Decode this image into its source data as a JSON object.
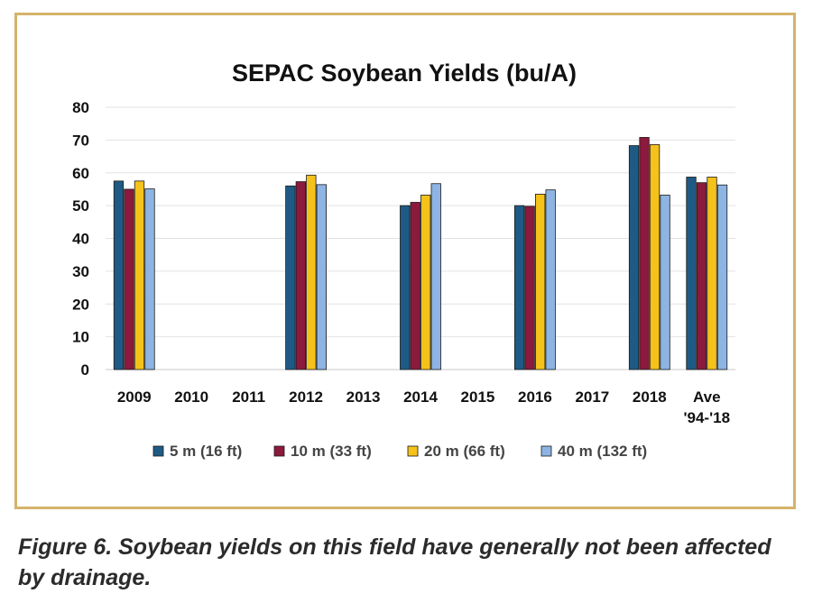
{
  "chart_data": {
    "type": "bar",
    "title": "SEPAC Soybean Yields (bu/A)",
    "categories": [
      [
        "2009"
      ],
      [
        "2010"
      ],
      [
        "2011"
      ],
      [
        "2012"
      ],
      [
        "2013"
      ],
      [
        "2014"
      ],
      [
        "2015"
      ],
      [
        "2016"
      ],
      [
        "2017"
      ],
      [
        "2018"
      ],
      [
        "Ave",
        "'94-'18"
      ]
    ],
    "series": [
      {
        "name": "5 m (16 ft)",
        "color": "#1f5a85",
        "values": [
          57.5,
          null,
          null,
          56,
          null,
          50,
          null,
          50,
          null,
          68.3,
          58.7
        ]
      },
      {
        "name": "10 m (33 ft)",
        "color": "#8b1a3c",
        "values": [
          55,
          null,
          null,
          57.3,
          null,
          51,
          null,
          49.8,
          null,
          70.8,
          57
        ]
      },
      {
        "name": "20 m (66 ft)",
        "color": "#f4c21b",
        "values": [
          57.5,
          null,
          null,
          59.3,
          null,
          53.2,
          null,
          53.5,
          null,
          68.6,
          58.7
        ]
      },
      {
        "name": "40 m (132 ft)",
        "color": "#8db4e2",
        "values": [
          55.1,
          null,
          null,
          56.4,
          null,
          56.7,
          null,
          54.8,
          null,
          53.2,
          56.3
        ]
      }
    ],
    "yticks": [
      "0",
      "10",
      "20",
      "30",
      "40",
      "50",
      "60",
      "70",
      "80"
    ],
    "ylim": [
      0,
      80
    ],
    "grid": true,
    "legend_position": "bottom"
  },
  "caption": "Figure 6. Soybean yields on this field have generally not been affected by drainage."
}
